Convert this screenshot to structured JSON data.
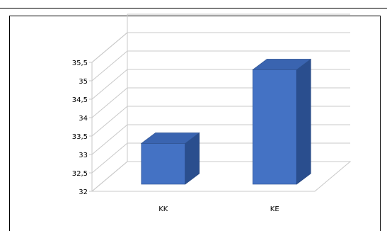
{
  "chart_data": {
    "type": "bar",
    "categories": [
      "KK",
      "KE"
    ],
    "series": [
      {
        "values": [
          33.3,
          35.3
        ],
        "color": "#4472C4"
      }
    ],
    "ylim": [
      32,
      35.5
    ],
    "yticks": [
      "32",
      "32,5",
      "33",
      "33,5",
      "34",
      "34,5",
      "35",
      "35,5"
    ],
    "grid": true,
    "style": "3d-column"
  }
}
